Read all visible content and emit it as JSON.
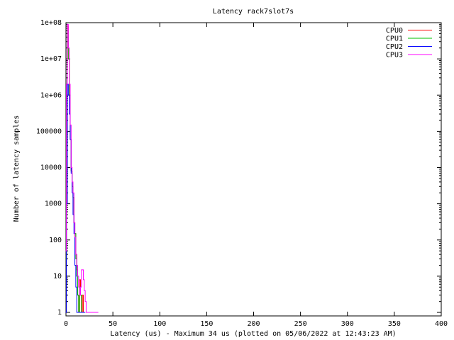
{
  "chart_data": {
    "type": "line",
    "title": "Latency rack7slot7s",
    "xlabel": "Latency (us) - Maximum 34 us (plotted on 05/06/2022 at 12:43:23 AM)",
    "ylabel": "Number of latency samples",
    "x_scale": "linear",
    "y_scale": "log",
    "xlim": [
      0,
      400
    ],
    "ylim": [
      0.8,
      100000000
    ],
    "grid": false,
    "legend_position": "top-right",
    "x_ticks": [
      0,
      50,
      100,
      150,
      200,
      250,
      300,
      350,
      400
    ],
    "x_tick_labels": [
      "0",
      "50",
      "100",
      "150",
      "200",
      "250",
      "300",
      "350",
      "400"
    ],
    "y_ticks": [
      1,
      10,
      100,
      1000,
      10000,
      100000,
      1000000,
      10000000,
      100000000
    ],
    "y_tick_labels": [
      "1",
      "10",
      "100",
      "1000",
      "10000",
      "100000",
      "1e+06",
      "1e+07",
      "1e+08"
    ],
    "series": [
      {
        "name": "CPU0",
        "color": "#ff0000",
        "x": [
          0,
          1,
          2,
          3,
          4,
          5,
          6,
          7,
          8,
          9,
          10,
          11,
          12,
          13,
          14,
          15,
          16,
          17,
          18,
          19,
          20
        ],
        "y": [
          30,
          500000,
          80000000,
          10000000,
          1000000,
          60000,
          8000,
          3000,
          1500,
          300,
          150,
          40,
          15,
          3,
          1,
          8,
          3,
          1,
          3,
          1,
          1
        ]
      },
      {
        "name": "CPU1",
        "color": "#00c000",
        "x": [
          0,
          1,
          2,
          3,
          4,
          5,
          6,
          7,
          8,
          9,
          10,
          11,
          12,
          13,
          14,
          15,
          16,
          17,
          18,
          19,
          20
        ],
        "y": [
          30,
          500000,
          60000000,
          10000000,
          1000000,
          60000,
          8000,
          3000,
          1500,
          300,
          150,
          30,
          10,
          3,
          1,
          5,
          3,
          1,
          1,
          1,
          1
        ]
      },
      {
        "name": "CPU2",
        "color": "#0000ff",
        "x": [
          0,
          1,
          2,
          3,
          4,
          5,
          6,
          7,
          8,
          9,
          10,
          11,
          12,
          13,
          14,
          15,
          16,
          17,
          18,
          19,
          20
        ],
        "y": [
          1,
          1000,
          2000000,
          1000000,
          300000,
          60000,
          7000,
          2000,
          500,
          150,
          20,
          5,
          1,
          1,
          1,
          1,
          1,
          1,
          1,
          1,
          1
        ]
      },
      {
        "name": "CPU3",
        "color": "#ff00ff",
        "x": [
          0,
          1,
          2,
          3,
          4,
          5,
          6,
          7,
          8,
          9,
          10,
          11,
          12,
          13,
          14,
          15,
          16,
          17,
          18,
          19,
          20,
          21,
          22,
          23,
          24,
          25,
          26,
          27,
          28,
          29,
          30,
          31,
          32,
          33,
          34
        ],
        "y": [
          50,
          2000000,
          90000000,
          20000000,
          2000000,
          150000,
          10000,
          4000,
          2000,
          300,
          120,
          40,
          20,
          10,
          5,
          3,
          5,
          15,
          15,
          8,
          4,
          2,
          1,
          1,
          1,
          1,
          1,
          1,
          1,
          1,
          1,
          1,
          1,
          1,
          1
        ]
      }
    ]
  }
}
